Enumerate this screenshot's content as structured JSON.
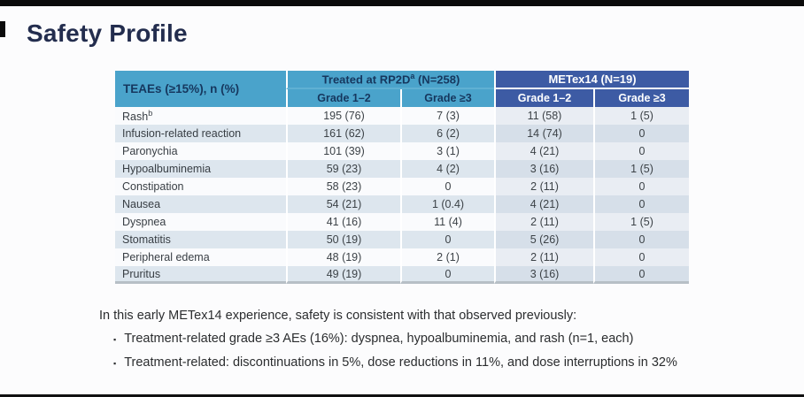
{
  "title": "Safety Profile",
  "table": {
    "corner_header": "TEAEs (≥15%), n (%)",
    "groups": [
      {
        "label": "Treated at RP2D",
        "sup": "a",
        "n_label": " (N=258)",
        "subcols": [
          "Grade 1–2",
          "Grade ≥3"
        ]
      },
      {
        "label": "METex14 (N=19)",
        "subcols": [
          "Grade 1–2",
          "Grade ≥3"
        ]
      }
    ],
    "rows": [
      {
        "name": "Rash",
        "sup": "b",
        "values": [
          "195 (76)",
          "7 (3)",
          "11 (58)",
          "1 (5)"
        ]
      },
      {
        "name": "Infusion-related reaction",
        "values": [
          "161 (62)",
          "6 (2)",
          "14 (74)",
          "0"
        ]
      },
      {
        "name": "Paronychia",
        "values": [
          "101 (39)",
          "3 (1)",
          "4 (21)",
          "0"
        ]
      },
      {
        "name": "Hypoalbuminemia",
        "values": [
          "59 (23)",
          "4 (2)",
          "3 (16)",
          "1 (5)"
        ]
      },
      {
        "name": "Constipation",
        "values": [
          "58 (23)",
          "0",
          "2 (11)",
          "0"
        ]
      },
      {
        "name": "Nausea",
        "values": [
          "54 (21)",
          "1 (0.4)",
          "4 (21)",
          "0"
        ]
      },
      {
        "name": "Dyspnea",
        "values": [
          "41 (16)",
          "11 (4)",
          "2 (11)",
          "1 (5)"
        ]
      },
      {
        "name": "Stomatitis",
        "values": [
          "50 (19)",
          "0",
          "5 (26)",
          "0"
        ]
      },
      {
        "name": "Peripheral edema",
        "values": [
          "48 (19)",
          "2 (1)",
          "2 (11)",
          "0"
        ]
      },
      {
        "name": "Pruritus",
        "values": [
          "49 (19)",
          "0",
          "3 (16)",
          "0"
        ]
      }
    ]
  },
  "notes": {
    "intro": "In this early METex14 experience, safety is consistent with that observed previously:",
    "bullet_char": "▪",
    "bullets": [
      "Treatment-related grade ≥3 AEs (16%): dyspnea, hypoalbuminemia, and rash (n=1, each)",
      "Treatment-related: discontinuations in 5%, dose reductions in 11%, and dose interruptions in 32%"
    ]
  },
  "colors": {
    "accent_light_blue": "#4aa3cb",
    "accent_dark_blue": "#3d5ba4",
    "header_text_navy": "#16375e",
    "stripe": "#dde6ee",
    "title_navy": "#232d4e"
  }
}
